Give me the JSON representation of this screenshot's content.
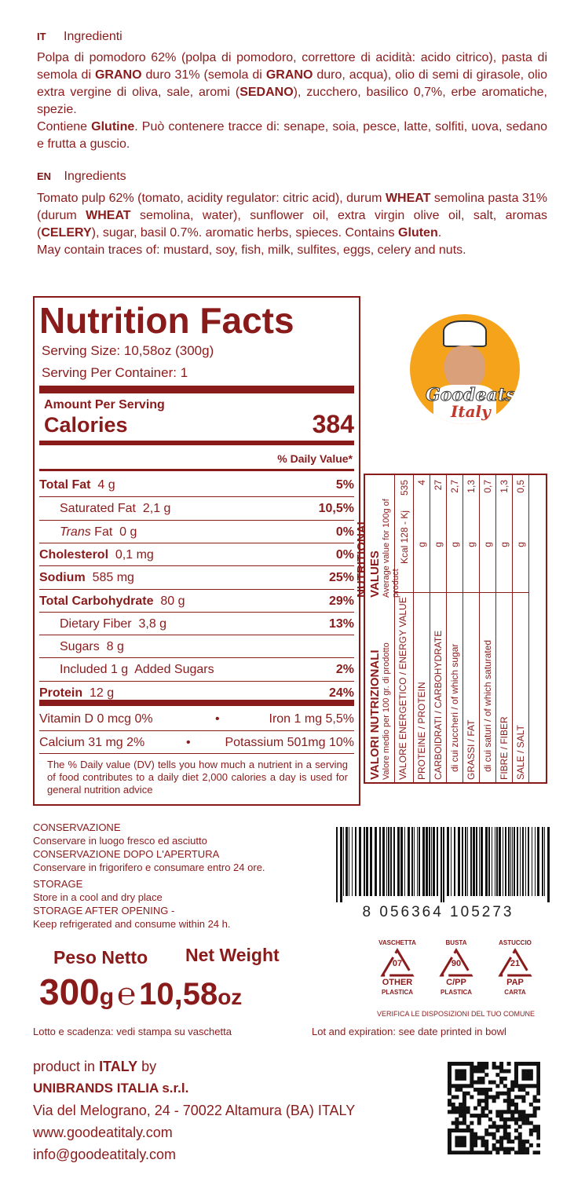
{
  "ingredients_it": {
    "lang": "IT",
    "heading": "Ingredienti",
    "text": [
      "Polpa di pomodoro 62% (polpa di pomodoro, correttore di acidità: acido citrico),  pasta di semola di ",
      "GRANO",
      " duro 31% (semola di ",
      "GRANO",
      " duro, acqua), olio di semi di girasole, olio extra vergine di oliva, sale, aromi (",
      "SEDANO",
      "), zucchero, basilico 0,7%, erbe aromatiche, spezie."
    ],
    "contains": [
      "Contiene ",
      "Glutine",
      ".  Può contenere tracce di: senape, soia, pesce, latte, solfiti, uova, sedano e frutta a guscio."
    ]
  },
  "ingredients_en": {
    "lang": "EN",
    "heading": "Ingredients",
    "text": [
      "Tomato pulp 62% (tomato, acidity regulator: citric acid), durum ",
      "WHEAT",
      " semolina pasta 31% (durum ",
      "WHEAT",
      " semolina, water), sunflower oil, extra virgin olive oil, salt, aromas (",
      "CELERY",
      "), sugar, basil 0.7%. aromatic herbs, spieces. Contains ",
      "Gluten",
      "."
    ],
    "traces": "May contain traces of: mustard, soy, fish, milk, sulfites, eggs, celery and nuts."
  },
  "nutrition_facts": {
    "title": "Nutrition Facts",
    "serving_size": "Serving Size: 10,58oz (300g)",
    "servings": "Serving Per Container: 1",
    "amount_per_serving": "Amount Per Serving",
    "calories_label": "Calories",
    "calories": "384",
    "dv_header": "% Daily Value*",
    "rows": [
      {
        "label": "Total Fat",
        "value": "4 g",
        "pct": "5%",
        "bold": true
      },
      {
        "label": "Saturated Fat",
        "value": "2,1 g",
        "pct": "10,5%",
        "indent": true
      },
      {
        "label": "Trans",
        "label2": " Fat",
        "value": "0 g",
        "pct": "0%",
        "indent": true,
        "italic": true
      },
      {
        "label": "Cholesterol",
        "value": "0,1 mg",
        "pct": "0%",
        "bold": true
      },
      {
        "label": "Sodium",
        "value": "585 mg",
        "pct": "25%",
        "bold": true
      },
      {
        "label": "Total Carbohydrate",
        "value": "80 g",
        "pct": "29%",
        "bold": true
      },
      {
        "label": "Dietary Fiber",
        "value": "3,8 g",
        "pct": "13%",
        "indent": true
      },
      {
        "label": "Sugars",
        "value": "8 g",
        "pct": "",
        "indent": true
      },
      {
        "label": "Included 1 g",
        "value": "Added Sugars",
        "pct": "2%",
        "indent": true
      },
      {
        "label": "Protein",
        "value": "12 g",
        "pct": "24%",
        "bold": true
      }
    ],
    "vitamins": [
      {
        "left": "Vitamin D 0 mcg  0%",
        "right": "Iron 1 mg  5,5%"
      },
      {
        "left": "Calcium 31 mg  2%",
        "right": "Potassium 501mg  10%"
      }
    ],
    "footnote": "The % Daily value (DV) tells you how much a nutrient in a serving of food contributes to a daily diet 2,000 calories a day is used for general nutrition advice"
  },
  "logo": {
    "text1": "Goodeats",
    "text2": "Italy",
    "colors": {
      "circle": "#f5a31a",
      "accent": "#c0392b"
    }
  },
  "nutritional_values": {
    "title_it": "VALORI NUTRIZIONALI",
    "title_en": "NUTRITIONAL VALUES",
    "sub_it": "Valore medio per 100 gr. di prodotto",
    "sub_en": "Average value for 100g of product",
    "rows": [
      {
        "label": "VALORE ENERGETICO / ENERGY VALUE",
        "unit": "Kcal  128 - Kj",
        "value": "535"
      },
      {
        "label": "PROTEINE / PROTEIN",
        "unit": "g",
        "value": "4"
      },
      {
        "label": "CARBOIDRATI / CARBOHYDRATE",
        "unit": "g",
        "value": "27"
      },
      {
        "label": "   di cui zuccheri / of which sugar",
        "unit": "g",
        "value": "2,7"
      },
      {
        "label": "GRASSI / FAT",
        "unit": "g",
        "value": "1,3"
      },
      {
        "label": "   di cui saturi / of which saturated",
        "unit": "g",
        "value": "0,7"
      },
      {
        "label": "FIBRE / FIBER",
        "unit": "g",
        "value": "1,3"
      },
      {
        "label": "SALE / SALT",
        "unit": "g",
        "value": "0,5"
      }
    ]
  },
  "storage": [
    "CONSERVAZIONE",
    "Conservare in luogo fresco ed asciutto",
    "CONSERVAZIONE DOPO L'APERTURA",
    "Conservare in frigorifero e consumare entro 24 ore.",
    "STORAGE",
    "Store in a cool and dry place",
    "STORAGE AFTER OPENING -",
    "Keep refrigerated and consume within 24 h."
  ],
  "barcode": "8 056364 105273",
  "weight": {
    "peso_label": "Peso Netto",
    "net_label": "Net Weight",
    "grams": "300",
    "g_unit": "g",
    "e_mark": "℮",
    "oz": "10,58",
    "oz_unit": "oz"
  },
  "recycling": {
    "items": [
      {
        "top": "VASCHETTA",
        "code": "07",
        "name": "OTHER",
        "material": "PLASTICA"
      },
      {
        "top": "BUSTA",
        "code": "90",
        "name": "C/PP",
        "material": "PLASTICA"
      },
      {
        "top": "ASTUCCIO",
        "code": "21",
        "name": "PAP",
        "material": "CARTA"
      }
    ],
    "note": "VERIFICA LE DISPOSIZIONI DEL TUO COMUNE"
  },
  "lot_it": "Lotto e scadenza: vedi stampa su vaschetta",
  "lot_en": "Lot and expiration: see date printed in bowl",
  "producer": {
    "line1a": "product in ",
    "line1b": "ITALY",
    "line1c": " by",
    "company": "UNIBRANDS ITALIA s.r.l.",
    "address": "Via del Melograno, 24  -  70022 Altamura (BA) ITALY",
    "web": "www.goodeatitaly.com",
    "email": "info@goodeatitaly.com"
  }
}
